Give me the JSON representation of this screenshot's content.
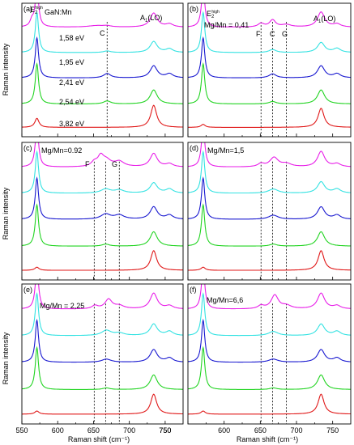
{
  "figure": {
    "y_axis_label": "Raman intensity",
    "x_axis_label": "Raman shift (cm⁻¹)"
  },
  "palette": {
    "magenta": "#e81ee8",
    "cyan": "#33e2e2",
    "blue": "#1818d0",
    "green": "#22d422",
    "red": "#e01818"
  },
  "chart_data": [
    {
      "type": "line",
      "panel": "(a)",
      "header": "GaN:Mn",
      "labels": [
        "E₂^high",
        "A₁(LO)",
        "C"
      ],
      "xlim": [
        550,
        775
      ],
      "xticks": [
        550,
        600,
        650,
        700,
        750
      ],
      "guides_cm": [
        669
      ],
      "series": [
        {
          "name": "1,58 eV",
          "color": "magenta",
          "peaks": [
            [
              564,
              3,
              0.3
            ],
            [
              571,
              2.8,
              2
            ],
            [
              655,
              15,
              0.08
            ],
            [
              669,
              6,
              0.05
            ],
            [
              734,
              6,
              0.7
            ],
            [
              756,
              6,
              0.15
            ]
          ]
        },
        {
          "name": "1,95 eV",
          "color": "cyan",
          "peaks": [
            [
              571,
              2.8,
              2
            ],
            [
              669,
              6,
              0.08
            ],
            [
              734,
              6,
              0.55
            ],
            [
              756,
              6,
              0.18
            ]
          ]
        },
        {
          "name": "2,41 eV",
          "color": "blue",
          "peaks": [
            [
              571,
              2.8,
              2
            ],
            [
              669,
              6,
              0.22
            ],
            [
              734,
              6,
              0.6
            ],
            [
              756,
              6,
              0.2
            ]
          ]
        },
        {
          "name": "2,54 eV",
          "color": "green",
          "peaks": [
            [
              571,
              2.8,
              2
            ],
            [
              669,
              6,
              0.15
            ],
            [
              734,
              6,
              0.7
            ]
          ]
        },
        {
          "name": "3,82 eV",
          "color": "red",
          "peaks": [
            [
              571,
              3.5,
              0.45
            ],
            [
              734,
              5,
              1.1
            ]
          ]
        }
      ]
    },
    {
      "type": "line",
      "panel": "(b)",
      "header": "Mg/Mn = 0,41",
      "labels": [
        "E₂^high",
        "A₁(LO)",
        "F",
        "C",
        "G"
      ],
      "xlim": [
        550,
        775
      ],
      "xticks": [
        550,
        600,
        650,
        700,
        750
      ],
      "guides_cm": [
        651,
        667,
        686
      ],
      "series": [
        {
          "name": "",
          "color": "magenta",
          "peaks": [
            [
              571,
              2.8,
              2
            ],
            [
              651,
              5,
              0.18
            ],
            [
              667,
              5,
              0.35
            ],
            [
              686,
              8,
              0.12
            ],
            [
              734,
              6,
              0.75
            ],
            [
              756,
              6,
              0.15
            ]
          ]
        },
        {
          "name": "",
          "color": "cyan",
          "peaks": [
            [
              571,
              2.8,
              2
            ],
            [
              667,
              6,
              0.15
            ],
            [
              734,
              6,
              0.5
            ],
            [
              756,
              6,
              0.2
            ]
          ]
        },
        {
          "name": "",
          "color": "blue",
          "peaks": [
            [
              571,
              2.8,
              2
            ],
            [
              667,
              6,
              0.2
            ],
            [
              734,
              6,
              0.6
            ],
            [
              756,
              6,
              0.2
            ]
          ]
        },
        {
          "name": "",
          "color": "green",
          "peaks": [
            [
              571,
              2.8,
              2
            ],
            [
              667,
              6,
              0.12
            ],
            [
              734,
              6,
              0.7
            ]
          ]
        },
        {
          "name": "",
          "color": "red",
          "peaks": [
            [
              571,
              3.5,
              0.15
            ],
            [
              734,
              5,
              0.95
            ]
          ]
        }
      ]
    },
    {
      "type": "line",
      "panel": "(c)",
      "header": "Mg/Mn=0.92",
      "labels": [
        "F",
        "G"
      ],
      "xlim": [
        550,
        775
      ],
      "xticks": [
        550,
        600,
        650,
        700,
        750
      ],
      "guides_cm": [
        651,
        667,
        686
      ],
      "series": [
        {
          "name": "",
          "color": "magenta",
          "peaks": [
            [
              571,
              2.8,
              2
            ],
            [
              651,
              5,
              0.2
            ],
            [
              660,
              5,
              0.45
            ],
            [
              668,
              8,
              0.3
            ],
            [
              686,
              8,
              0.25
            ],
            [
              734,
              6,
              0.65
            ],
            [
              756,
              6,
              0.15
            ]
          ]
        },
        {
          "name": "",
          "color": "cyan",
          "peaks": [
            [
              571,
              2.8,
              2
            ],
            [
              667,
              8,
              0.2
            ],
            [
              686,
              8,
              0.15
            ],
            [
              734,
              6,
              0.5
            ],
            [
              756,
              6,
              0.2
            ]
          ]
        },
        {
          "name": "",
          "color": "blue",
          "peaks": [
            [
              571,
              2.8,
              2
            ],
            [
              667,
              8,
              0.25
            ],
            [
              686,
              8,
              0.2
            ],
            [
              734,
              6,
              0.6
            ],
            [
              756,
              6,
              0.2
            ]
          ]
        },
        {
          "name": "",
          "color": "green",
          "peaks": [
            [
              571,
              2.8,
              2
            ],
            [
              667,
              6,
              0.1
            ],
            [
              734,
              6,
              0.7
            ]
          ]
        },
        {
          "name": "",
          "color": "red",
          "peaks": [
            [
              571,
              3.5,
              0.15
            ],
            [
              734,
              5,
              0.95
            ]
          ]
        }
      ]
    },
    {
      "type": "line",
      "panel": "(d)",
      "header": "Mg/Mn=1,5",
      "labels": [],
      "xlim": [
        550,
        775
      ],
      "xticks": [
        550,
        600,
        650,
        700,
        750
      ],
      "guides_cm": [
        651,
        667,
        686
      ],
      "series": [
        {
          "name": "",
          "color": "magenta",
          "peaks": [
            [
              571,
              2.8,
              2
            ],
            [
              651,
              5,
              0.15
            ],
            [
              669,
              7,
              0.45
            ],
            [
              686,
              8,
              0.15
            ],
            [
              734,
              6,
              0.75
            ],
            [
              756,
              6,
              0.15
            ]
          ]
        },
        {
          "name": "",
          "color": "cyan",
          "peaks": [
            [
              571,
              2.8,
              2
            ],
            [
              668,
              8,
              0.2
            ],
            [
              734,
              6,
              0.55
            ],
            [
              756,
              6,
              0.2
            ]
          ]
        },
        {
          "name": "",
          "color": "blue",
          "peaks": [
            [
              571,
              2.8,
              2
            ],
            [
              668,
              8,
              0.2
            ],
            [
              734,
              6,
              0.6
            ],
            [
              756,
              6,
              0.2
            ]
          ]
        },
        {
          "name": "",
          "color": "green",
          "peaks": [
            [
              571,
              2.8,
              2
            ],
            [
              668,
              6,
              0.1
            ],
            [
              734,
              6,
              0.7
            ]
          ]
        },
        {
          "name": "",
          "color": "red",
          "peaks": [
            [
              571,
              3.5,
              0.15
            ],
            [
              734,
              5,
              0.95
            ]
          ]
        }
      ]
    },
    {
      "type": "line",
      "panel": "(e)",
      "header": "Mg/Mn = 2,25",
      "labels": [],
      "xlim": [
        550,
        775
      ],
      "xticks": [
        550,
        600,
        650,
        700,
        750
      ],
      "guides_cm": [
        651,
        667,
        686
      ],
      "series": [
        {
          "name": "",
          "color": "magenta",
          "peaks": [
            [
              571,
              2.8,
              2
            ],
            [
              652,
              5,
              0.15
            ],
            [
              671,
              6,
              0.45
            ],
            [
              686,
              8,
              0.15
            ],
            [
              734,
              6,
              0.75
            ],
            [
              756,
              6,
              0.15
            ]
          ]
        },
        {
          "name": "",
          "color": "cyan",
          "peaks": [
            [
              571,
              2.8,
              2
            ],
            [
              668,
              8,
              0.25
            ],
            [
              686,
              8,
              0.12
            ],
            [
              734,
              6,
              0.55
            ],
            [
              756,
              6,
              0.2
            ]
          ]
        },
        {
          "name": "",
          "color": "blue",
          "peaks": [
            [
              571,
              2.8,
              2
            ],
            [
              668,
              8,
              0.15
            ],
            [
              734,
              6,
              0.6
            ],
            [
              756,
              6,
              0.2
            ]
          ]
        },
        {
          "name": "",
          "color": "green",
          "peaks": [
            [
              571,
              2.8,
              2
            ],
            [
              668,
              6,
              0.08
            ],
            [
              734,
              6,
              0.7
            ]
          ]
        },
        {
          "name": "",
          "color": "red",
          "peaks": [
            [
              571,
              3.5,
              0.15
            ],
            [
              734,
              5,
              0.95
            ]
          ]
        }
      ]
    },
    {
      "type": "line",
      "panel": "(f)",
      "header": "Mg/Mn=6,6",
      "labels": [],
      "xlim": [
        550,
        775
      ],
      "xticks": [
        550,
        600,
        650,
        700,
        750
      ],
      "guides_cm": [
        651,
        667,
        686
      ],
      "series": [
        {
          "name": "",
          "color": "magenta",
          "peaks": [
            [
              571,
              2.8,
              2
            ],
            [
              651,
              5,
              0.15
            ],
            [
              670,
              6,
              0.65
            ],
            [
              686,
              8,
              0.15
            ],
            [
              734,
              6,
              0.75
            ],
            [
              756,
              6,
              0.15
            ]
          ]
        },
        {
          "name": "",
          "color": "cyan",
          "peaks": [
            [
              571,
              2.8,
              2
            ],
            [
              668,
              8,
              0.2
            ],
            [
              734,
              6,
              0.55
            ],
            [
              756,
              6,
              0.2
            ]
          ]
        },
        {
          "name": "",
          "color": "blue",
          "peaks": [
            [
              571,
              2.8,
              2
            ],
            [
              668,
              8,
              0.15
            ],
            [
              734,
              6,
              0.6
            ],
            [
              756,
              6,
              0.2
            ]
          ]
        },
        {
          "name": "",
          "color": "green",
          "peaks": [
            [
              571,
              2.8,
              2
            ],
            [
              668,
              6,
              0.08
            ],
            [
              734,
              6,
              0.7
            ]
          ]
        },
        {
          "name": "",
          "color": "red",
          "peaks": [
            [
              571,
              3.5,
              0.15
            ],
            [
              734,
              5,
              0.95
            ]
          ]
        }
      ]
    }
  ]
}
